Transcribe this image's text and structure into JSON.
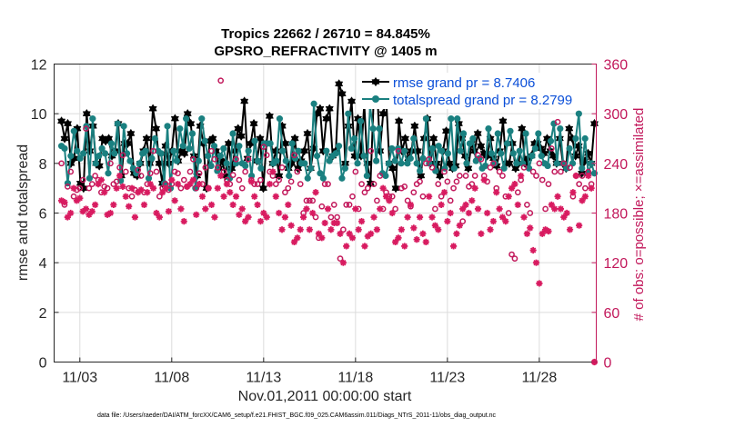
{
  "chart_data": {
    "type": "line",
    "title": [
      "Tropics 22662 / 26710 = 84.845%",
      "GPSRO_REFRACTIVITY @ 1405 m"
    ],
    "xlabel": "Nov.01,2011 00:00:00 start",
    "ylabel_left": "rmse and totalspread",
    "ylabel_right": "# of obs: o=possible; ×=assimilated",
    "x_tick_labels": [
      "11/03",
      "11/08",
      "11/13",
      "11/18",
      "11/23",
      "11/28"
    ],
    "x_tick_values": [
      2,
      7,
      12,
      17,
      22,
      27
    ],
    "xlim": [
      0.6,
      30.1
    ],
    "ylim_left": [
      0,
      12
    ],
    "y_ticks_left": [
      "0",
      "2",
      "4",
      "6",
      "8",
      "10",
      "12"
    ],
    "ylim_right": [
      0,
      360
    ],
    "y_ticks_right": [
      "0",
      "60",
      "120",
      "180",
      "240",
      "300",
      "360"
    ],
    "grid": true,
    "legend_position": "top-right",
    "footer": "data file: /Users/raeder/DAI/ATM_forcXX/CAM6_setup/f.e21.FHIST_BGC.f09_025.CAM6assim.011/Diags_NTrS_2011-11/obs_diag_output.nc",
    "series": [
      {
        "name": "rmse grand pr = 8.7406",
        "color": "#000000",
        "marker": "hexagram",
        "axis": "left",
        "values": [
          9.7,
          9.0,
          9.6,
          8.0,
          8.2,
          9.4,
          7.2,
          7.0,
          10.0,
          8.5,
          9.5,
          8.0,
          7.9,
          9.0,
          8.9,
          9.0,
          8.3,
          8.5,
          9.6,
          7.5,
          8.8,
          8.8,
          9.2,
          7.6,
          7.5,
          8.0,
          8.5,
          9.0,
          8.0,
          10.2,
          9.4,
          8.0,
          7.2,
          8.7,
          8.0,
          8.5,
          9.8,
          8.1,
          8.5,
          8.4,
          10.0,
          9.6,
          8.3,
          7.5,
          9.5,
          8.8,
          7.0,
          8.9,
          9.0,
          8.5,
          7.8,
          8.1,
          7.5,
          8.8,
          7.8,
          8.5,
          9.4,
          9.1,
          10.5,
          8.2,
          8.8,
          9.6,
          8.1,
          9.0,
          7.0,
          8.8,
          9.9,
          8.0,
          8.5,
          7.5,
          9.5,
          8.8,
          7.8,
          8.0,
          9.0,
          7.8,
          8.1,
          8.5,
          9.2,
          7.8,
          8.6,
          10.0,
          10.2,
          8.5,
          9.8,
          10.2,
          8.3,
          8.5,
          11.2,
          10.8,
          8.0,
          9.5,
          10.5,
          8.3,
          9.8,
          8.3,
          10.4,
          8.0,
          7.2,
          10.6,
          11.3,
          8.5,
          10.0,
          10.5,
          8.0,
          7.8,
          7.0,
          9.7,
          8.5,
          9.0,
          8.2,
          8.5,
          9.5,
          8.5,
          7.5,
          9.0,
          9.8,
          8.0,
          9.0,
          8.0,
          7.5,
          8.5,
          9.3,
          8.0,
          7.8,
          7.9,
          9.6,
          9.0,
          8.3,
          7.8,
          8.8,
          8.5,
          9.2,
          8.7,
          8.4,
          8.3,
          9.0,
          8.2,
          7.9,
          8.5,
          9.7,
          8.0,
          8.0,
          8.8,
          7.8,
          8.0,
          9.4,
          8.0,
          8.2,
          8.3,
          8.8,
          8.8,
          8.6,
          8.4,
          9.0,
          8.5,
          8.3,
          8.0,
          9.0,
          8.0,
          7.8,
          9.4,
          9.0,
          8.3,
          8.7,
          7.6,
          8.1,
          8.4,
          8.0,
          9.6
        ]
      },
      {
        "name": "totalspread grand pr = 8.2799",
        "color": "#1a8080",
        "marker": "circle",
        "axis": "left",
        "values": [
          8.7,
          8.6,
          7.2,
          8.3,
          9.3,
          8.5,
          8.2,
          8.4,
          9.5,
          7.4,
          9.8,
          8.0,
          8.3,
          8.6,
          8.4,
          7.6,
          8.8,
          8.4,
          9.6,
          7.3,
          9.5,
          8.4,
          8.1,
          7.8,
          7.6,
          8.0,
          8.4,
          8.5,
          7.4,
          8.2,
          9.0,
          8.5,
          8.4,
          7.2,
          9.5,
          7.0,
          8.5,
          8.1,
          9.4,
          8.7,
          9.8,
          8.6,
          9.2,
          7.0,
          8.1,
          9.8,
          8.9,
          8.3,
          7.9,
          8.7,
          7.7,
          8.3,
          8.6,
          8.0,
          7.4,
          9.2,
          8.0,
          8.7,
          8.0,
          7.9,
          8.5,
          7.5,
          8.9,
          8.1,
          7.8,
          8.8,
          8.8,
          8.8,
          8.0,
          8.1,
          9.8,
          8.5,
          8.1,
          7.5,
          8.8,
          8.2,
          8.5,
          8.0,
          8.0,
          7.4,
          7.8,
          10.4,
          8.3,
          7.6,
          7.4,
          8.5,
          8.1,
          8.3,
          8.4,
          8.7,
          7.4,
          7.8,
          10.0,
          8.6,
          9.0,
          8.0,
          9.7,
          8.3,
          7.5,
          10.3,
          9.4,
          8.1,
          9.4,
          7.6,
          7.5,
          8.0,
          8.6,
          8.1,
          8.6,
          8.0,
          8.5,
          8.0,
          8.2,
          9.0,
          8.0,
          7.7,
          8.2,
          9.8,
          8.0,
          8.6,
          7.7,
          8.7,
          8.5,
          7.8,
          8.4,
          9.8,
          7.8,
          9.8,
          8.5,
          9.2,
          8.0,
          8.8,
          9.0,
          8.1,
          8.2,
          7.8,
          7.9,
          9.4,
          8.4,
          8.0,
          9.2,
          8.4,
          7.8,
          8.8,
          9.3,
          8.4,
          8.0,
          8.5,
          8.0,
          9.2,
          7.8,
          8.3,
          8.6,
          9.2,
          8.3,
          8.0,
          7.9,
          8.9,
          9.6,
          8.0,
          9.4,
          8.0,
          7.8,
          8.6,
          8.0,
          9.0,
          10.0,
          7.8,
          9.0,
          7.6,
          8.0,
          7.6
        ]
      },
      {
        "name": "possible obs",
        "color": "#c2185b",
        "marker": "open-circle",
        "axis": "right",
        "values": [
          240,
          190,
          212,
          230,
          200,
          208,
          210,
          220,
          282,
          210,
          215,
          225,
          220,
          205,
          212,
          210,
          240,
          215,
          218,
          235,
          250,
          230,
          210,
          200,
          208,
          232,
          225,
          205,
          215,
          228,
          255,
          230,
          200,
          210,
          215,
          208,
          215,
          230,
          228,
          210,
          220,
          212,
          230,
          245,
          210,
          228,
          215,
          235,
          210,
          255,
          245,
          235,
          340,
          230,
          220,
          215,
          226,
          245,
          220,
          210,
          230,
          245,
          220,
          215,
          215,
          220,
          260,
          250,
          230,
          225,
          215,
          220,
          235,
          205,
          210,
          218,
          250,
          230,
          215,
          180,
          195,
          195,
          195,
          175,
          150,
          188,
          215,
          215,
          175,
          190,
          175,
          125,
          160,
          190,
          190,
          200,
          230,
          185,
          215,
          205,
          210,
          255,
          215,
          195,
          225,
          185,
          205,
          200,
          200,
          185,
          255,
          210,
          212,
          195,
          188,
          205,
          215,
          218,
          200,
          240,
          245,
          235,
          185,
          215,
          200,
          230,
          218,
          195,
          210,
          218,
          225,
          170,
          225,
          212,
          215,
          225,
          250,
          245,
          225,
          218,
          235,
          240,
          210,
          230,
          225,
          200,
          180,
          130,
          125,
          205,
          220,
          235,
          190,
          180,
          230,
          225,
          240,
          220,
          185,
          215,
          258,
          230,
          290,
          230,
          240,
          335,
          235,
          200,
          225,
          215,
          225,
          210,
          230,
          215,
          0
        ]
      },
      {
        "name": "assimilated obs",
        "color": "#d81b60",
        "marker": "asterisk",
        "axis": "right",
        "values": [
          195,
          193,
          175,
          180,
          210,
          195,
          198,
          182,
          185,
          178,
          182,
          190,
          215,
          220,
          205,
          178,
          180,
          190,
          210,
          225,
          212,
          200,
          188,
          210,
          175,
          205,
          208,
          190,
          205,
          215,
          210,
          180,
          175,
          205,
          210,
          182,
          220,
          195,
          215,
          185,
          170,
          212,
          215,
          220,
          178,
          215,
          200,
          185,
          210,
          190,
          175,
          210,
          225,
          200,
          215,
          205,
          190,
          200,
          178,
          185,
          170,
          175,
          218,
          200,
          190,
          170,
          180,
          175,
          215,
          230,
          200,
          180,
          160,
          175,
          190,
          165,
          145,
          150,
          160,
          175,
          185,
          160,
          180,
          205,
          155,
          150,
          168,
          185,
          160,
          168,
          168,
          155,
          120,
          140,
          155,
          150,
          185,
          160,
          170,
          140,
          152,
          155,
          175,
          160,
          185,
          210,
          200,
          195,
          180,
          145,
          150,
          160,
          140,
          175,
          190,
          162,
          148,
          175,
          155,
          145,
          200,
          175,
          165,
          160,
          190,
          205,
          170,
          180,
          140,
          155,
          165,
          185,
          190,
          180,
          195,
          210,
          185,
          155,
          220,
          180,
          160,
          170,
          205,
          185,
          175,
          170,
          200,
          210,
          215,
          190,
          225,
          175,
          155,
          162,
          135,
          120,
          95,
          155,
          160,
          158,
          190,
          185,
          200,
          185,
          175,
          180,
          160,
          205,
          225,
          165,
          195,
          200,
          225,
          210,
          0
        ]
      }
    ]
  }
}
